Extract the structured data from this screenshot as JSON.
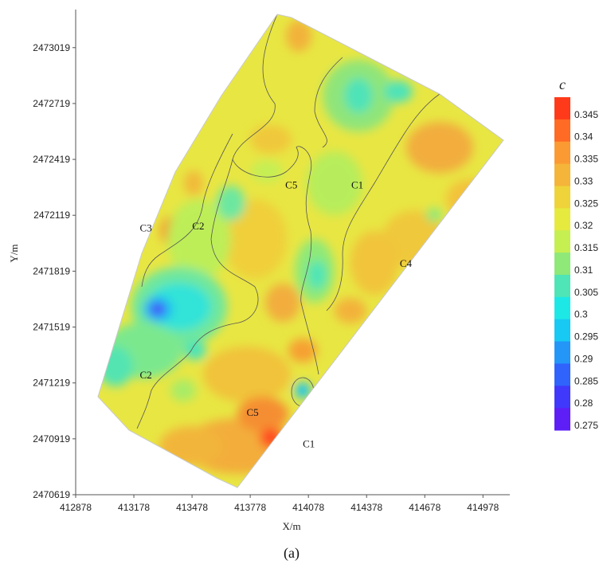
{
  "chart_data": {
    "type": "heatmap",
    "title": "",
    "xlabel": "X/m",
    "ylabel": "Y/m",
    "xlim": [
      412878,
      415178
    ],
    "ylim": [
      2470619,
      2473219
    ],
    "x_ticks": [
      "412878",
      "413178",
      "413478",
      "413778",
      "414078",
      "414378",
      "414678",
      "414978"
    ],
    "y_ticks": [
      "2470619",
      "2470919",
      "2471219",
      "2471519",
      "2471819",
      "2472119",
      "2472419",
      "2472719",
      "2473019"
    ],
    "colorbar": {
      "title": "c",
      "levels": [
        "0.345",
        "0.34",
        "0.335",
        "0.33",
        "0.325",
        "0.32",
        "0.315",
        "0.31",
        "0.305",
        "0.3",
        "0.295",
        "0.29",
        "0.285",
        "0.28",
        "0.275"
      ],
      "colors": [
        "#ff3a1a",
        "#ff6a25",
        "#fb9a32",
        "#f5b43a",
        "#eed33a",
        "#e6ea3f",
        "#c6ef52",
        "#8ee979",
        "#4fe5b6",
        "#1ee8e6",
        "#17c9f3",
        "#2396f8",
        "#2f63fb",
        "#4039fb",
        "#5e1ff7"
      ]
    },
    "zones": [
      {
        "label": "C5",
        "x": 413990,
        "y": 2472280
      },
      {
        "label": "C1",
        "x": 414330,
        "y": 2472280
      },
      {
        "label": "C3",
        "x": 413240,
        "y": 2472050
      },
      {
        "label": "C2",
        "x": 413510,
        "y": 2472060
      },
      {
        "label": "C4",
        "x": 414580,
        "y": 2471860
      },
      {
        "label": "C2",
        "x": 413240,
        "y": 2471260
      },
      {
        "label": "C5",
        "x": 413790,
        "y": 2471060
      },
      {
        "label": "C1",
        "x": 414080,
        "y": 2470890
      }
    ],
    "caption": "(a)"
  }
}
